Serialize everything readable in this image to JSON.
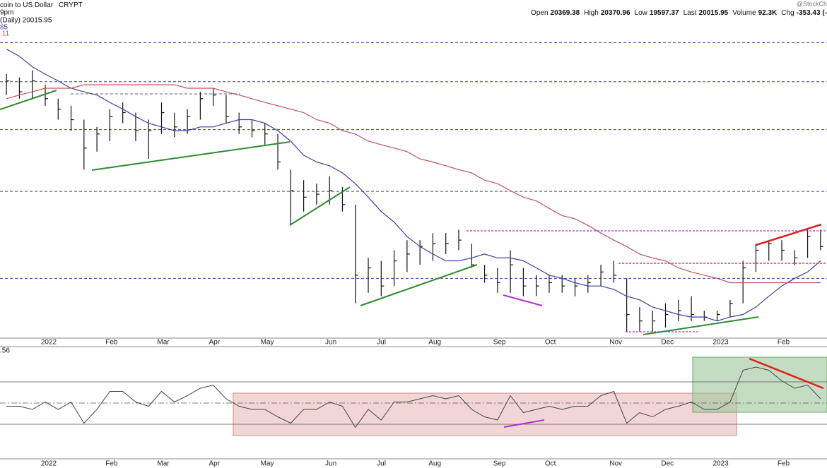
{
  "header": {
    "name": "coin to US Dollar",
    "exchange": "CRYPT",
    "time": "9pm",
    "daily": "(Daily) 20015.95",
    "ma_short": "85",
    "ma_long": ".11",
    "rsi_label": ".56",
    "credit": "@StockCh",
    "quote": [
      {
        "label": "Open",
        "value": "20369.38"
      },
      {
        "label": "High",
        "value": "20370.96"
      },
      {
        "label": "Low",
        "value": "19597.37"
      },
      {
        "label": "Last",
        "value": "20015.95"
      },
      {
        "label": "Volume",
        "value": "92.3K"
      },
      {
        "label": "Chg",
        "value": "-353.43 (-"
      }
    ]
  },
  "chart_data": [
    {
      "type": "ohlc",
      "categories": [
        null,
        null,
        null,
        "2022",
        null,
        null,
        null,
        null,
        "Feb",
        null,
        null,
        null,
        "Mar",
        null,
        null,
        null,
        "Apr",
        null,
        null,
        null,
        "May",
        null,
        null,
        null,
        null,
        "Jun",
        null,
        null,
        null,
        "Jul",
        null,
        null,
        null,
        "Aug",
        null,
        null,
        null,
        null,
        "Sep",
        null,
        null,
        null,
        "Oct",
        null,
        null,
        null,
        null,
        "Nov",
        null,
        null,
        null,
        "Dec",
        null,
        null,
        null,
        "2023",
        null,
        null,
        null,
        null,
        "Feb",
        null,
        null,
        null
      ],
      "high": [
        51800,
        51000,
        52700,
        49300,
        46200,
        44700,
        41900,
        40500,
        44000,
        45400,
        43300,
        41900,
        45400,
        43300,
        44000,
        47700,
        48500,
        47000,
        43300,
        41900,
        41200,
        39200,
        33200,
        31600,
        31100,
        32200,
        30600,
        28200,
        22000,
        21700,
        22800,
        23900,
        23900,
        24700,
        24700,
        25100,
        23500,
        21300,
        21000,
        22800,
        21000,
        20300,
        20300,
        20300,
        20000,
        20300,
        21300,
        21700,
        20000,
        17500,
        17200,
        17800,
        18100,
        18400,
        17200,
        17200,
        18100,
        21700,
        23500,
        23900,
        23900,
        22800,
        25100,
        25100
      ],
      "low": [
        47000,
        46200,
        46200,
        44700,
        41900,
        39800,
        33200,
        36100,
        37900,
        41200,
        37900,
        34900,
        39200,
        38600,
        39200,
        41900,
        44700,
        41200,
        39200,
        38600,
        37300,
        33200,
        25600,
        27300,
        28200,
        28200,
        27300,
        17800,
        18700,
        18400,
        19300,
        20600,
        21300,
        21700,
        22400,
        22800,
        21000,
        19600,
        18700,
        18700,
        18400,
        18400,
        18700,
        18700,
        18400,
        18700,
        19300,
        19600,
        15600,
        15600,
        15600,
        15900,
        16400,
        16400,
        16400,
        16400,
        16700,
        17800,
        20600,
        21700,
        21700,
        21300,
        22000,
        22800
      ],
      "close": [
        50200,
        47700,
        50200,
        46200,
        44000,
        41900,
        36700,
        39200,
        42500,
        43300,
        39800,
        39800,
        43300,
        40500,
        42500,
        46200,
        47000,
        42500,
        40500,
        39800,
        39200,
        34400,
        30100,
        29200,
        29600,
        30100,
        28200,
        20300,
        21000,
        19300,
        21700,
        22400,
        23200,
        23500,
        23500,
        23900,
        21300,
        20300,
        19600,
        21300,
        19300,
        19300,
        19600,
        19300,
        19300,
        19600,
        20600,
        20300,
        16900,
        16400,
        16400,
        16900,
        17200,
        16900,
        16700,
        16900,
        17800,
        21000,
        22800,
        23500,
        22800,
        22000,
        24300,
        23200
      ],
      "color": "#111111",
      "series": [
        {
          "color": "#3b3f9e",
          "values": [
            58200,
            56300,
            53600,
            51800,
            50200,
            48500,
            47700,
            47000,
            45400,
            44000,
            42500,
            41200,
            40500,
            39800,
            39800,
            40500,
            40500,
            41200,
            41900,
            41900,
            41200,
            39800,
            37900,
            35500,
            34400,
            33800,
            32700,
            31100,
            29200,
            27300,
            26000,
            24300,
            23200,
            22400,
            21700,
            21700,
            22000,
            22400,
            22000,
            22000,
            21700,
            21000,
            20300,
            20000,
            19600,
            19300,
            19300,
            19000,
            18400,
            18100,
            17500,
            17200,
            16900,
            16700,
            16700,
            16400,
            16700,
            16900,
            17500,
            18400,
            19300,
            20000,
            20600,
            21700
          ]
        },
        {
          "color": "#c0505f",
          "values": [
            46200,
            47000,
            47700,
            48500,
            48500,
            48500,
            49300,
            49300,
            49300,
            49300,
            49300,
            49300,
            49300,
            49300,
            48500,
            48500,
            48500,
            47700,
            47000,
            46200,
            45400,
            44700,
            44000,
            43300,
            41900,
            41200,
            39800,
            39200,
            37900,
            37300,
            36700,
            36100,
            34900,
            34400,
            33800,
            33200,
            32700,
            31600,
            31100,
            30100,
            29200,
            28700,
            27700,
            26800,
            26400,
            25600,
            24700,
            23900,
            23200,
            22400,
            22000,
            21700,
            21000,
            20600,
            20300,
            20000,
            19600,
            19600,
            19600,
            19600,
            19600,
            19600,
            19600,
            19600
          ]
        }
      ],
      "ylim": [
        14600,
        66300
      ],
      "log": true,
      "levels": [
        60000,
        50000,
        40000,
        30000,
        20000
      ],
      "level_color": "#3b3fa5"
    },
    {
      "type": "line",
      "categories": [
        null,
        null,
        null,
        "2022",
        null,
        null,
        null,
        null,
        "Feb",
        null,
        null,
        null,
        "Mar",
        null,
        null,
        null,
        "Apr",
        null,
        null,
        null,
        "May",
        null,
        null,
        null,
        null,
        "Jun",
        null,
        null,
        null,
        "Jul",
        null,
        null,
        null,
        "Aug",
        null,
        null,
        null,
        null,
        "Sep",
        null,
        null,
        null,
        "Oct",
        null,
        null,
        null,
        null,
        "Nov",
        null,
        null,
        null,
        "Dec",
        null,
        null,
        null,
        "2023",
        null,
        null,
        null,
        null,
        "Feb",
        null,
        null,
        null
      ],
      "series": [
        {
          "color": "#444444",
          "values": [
            47,
            47,
            44,
            51,
            44,
            51,
            31,
            44,
            61,
            61,
            51,
            47,
            61,
            51,
            57,
            64,
            67,
            54,
            47,
            44,
            44,
            37,
            31,
            44,
            44,
            51,
            47,
            27,
            44,
            34,
            51,
            51,
            54,
            57,
            54,
            57,
            44,
            37,
            34,
            57,
            41,
            44,
            47,
            44,
            47,
            47,
            57,
            61,
            31,
            41,
            37,
            44,
            47,
            51,
            44,
            44,
            51,
            81,
            84,
            81,
            71,
            64,
            67,
            54
          ]
        }
      ],
      "ylim": [
        0,
        100
      ],
      "yticks": [
        30,
        50,
        70
      ],
      "grid": true
    }
  ]
}
